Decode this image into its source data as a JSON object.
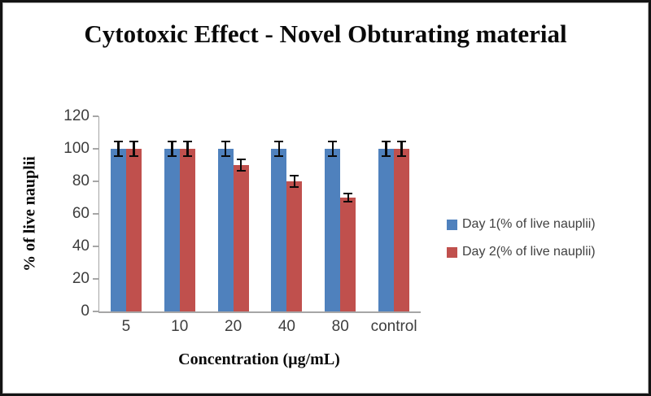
{
  "figure": {
    "frame_border_color": "#141414"
  },
  "chart_data": {
    "type": "bar",
    "title": "Cytotoxic Effect - Novel Obturating material",
    "xlabel": "Concentration (µg/mL)",
    "ylabel": "% of live nauplii",
    "categories": [
      "5",
      "10",
      "20",
      "40",
      "80",
      "control"
    ],
    "series": [
      {
        "name": "Day 1(% of live nauplii)",
        "color": "#4f81bd",
        "values": [
          100,
          100,
          100,
          100,
          100,
          100
        ],
        "errors": [
          5,
          5,
          5,
          5,
          5,
          5
        ]
      },
      {
        "name": "Day 2(% of live nauplii)",
        "color": "#c0504d",
        "values": [
          100,
          100,
          90,
          80,
          70,
          100
        ],
        "errors": [
          5,
          5,
          4,
          4,
          3,
          5
        ]
      }
    ],
    "ylim": [
      0,
      120
    ],
    "ytick_step": 20,
    "ytick_labels": [
      "0",
      "20",
      "40",
      "60",
      "80",
      "100",
      "120"
    ],
    "grid": false,
    "error_bars": true,
    "legend_position": "right",
    "axis_color": "#a6a6a6",
    "tick_label_color": "#3d3d3d",
    "legend_text_color": "#404040",
    "error_bar_color": "#0a0a0a"
  }
}
